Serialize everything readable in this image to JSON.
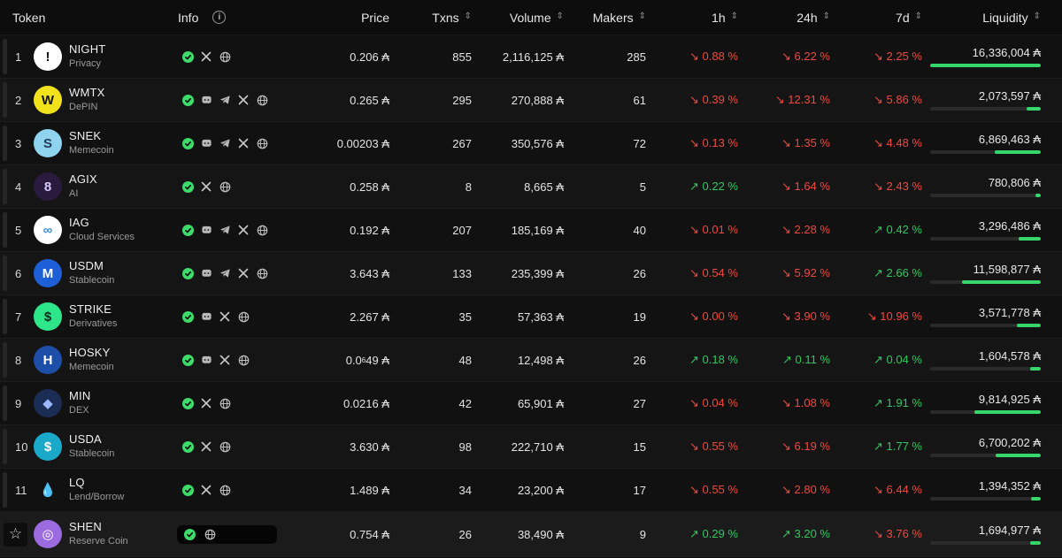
{
  "header": {
    "token": "Token",
    "info": "Info",
    "price": "Price",
    "txns": "Txns",
    "volume": "Volume",
    "makers": "Makers",
    "h1": "1h",
    "h24": "24h",
    "d7": "7d",
    "liquidity": "Liquidity"
  },
  "currency": "₳",
  "rows": [
    {
      "rank": "1",
      "symbol": "NIGHT",
      "category": "Privacy",
      "price": "0.206 ₳",
      "txns": "855",
      "volume": "2,116,125 ₳",
      "makers": "285",
      "h1": "↘ 0.88 %",
      "h1_dir": "down",
      "h24": "↘ 6.22 %",
      "h24_dir": "down",
      "d7": "↘ 2.25 %",
      "d7_dir": "down",
      "liquidity": "16,336,004 ₳",
      "liq_fill": 1.0,
      "icons": [
        "check",
        "x",
        "globe"
      ],
      "logo": {
        "bg": "#ffffff",
        "fg": "#111111",
        "glyph": "!"
      }
    },
    {
      "rank": "2",
      "symbol": "WMTX",
      "category": "DePIN",
      "price": "0.265 ₳",
      "txns": "295",
      "volume": "270,888 ₳",
      "makers": "61",
      "h1": "↘ 0.39 %",
      "h1_dir": "down",
      "h24": "↘ 12.31 %",
      "h24_dir": "down",
      "d7": "↘ 5.86 %",
      "d7_dir": "down",
      "liquidity": "2,073,597 ₳",
      "liq_fill": 0.13,
      "icons": [
        "check",
        "discord",
        "telegram",
        "x",
        "globe"
      ],
      "logo": {
        "bg": "#f2e21b",
        "fg": "#111111",
        "glyph": "W"
      }
    },
    {
      "rank": "3",
      "symbol": "SNEK",
      "category": "Memecoin",
      "price": "0.00203 ₳",
      "txns": "267",
      "volume": "350,576 ₳",
      "makers": "72",
      "h1": "↘ 0.13 %",
      "h1_dir": "down",
      "h24": "↘ 1.35 %",
      "h24_dir": "down",
      "d7": "↘ 4.48 %",
      "d7_dir": "down",
      "liquidity": "6,869,463 ₳",
      "liq_fill": 0.42,
      "icons": [
        "check",
        "discord",
        "telegram",
        "x",
        "globe"
      ],
      "logo": {
        "bg": "#8fd3ee",
        "fg": "#1e3b5a",
        "glyph": "S"
      }
    },
    {
      "rank": "4",
      "symbol": "AGIX",
      "category": "AI",
      "price": "0.258 ₳",
      "txns": "8",
      "volume": "8,665 ₳",
      "makers": "5",
      "h1": "↗ 0.22 %",
      "h1_dir": "up",
      "h24": "↘ 1.64 %",
      "h24_dir": "down",
      "d7": "↘ 2.43 %",
      "d7_dir": "down",
      "liquidity": "780,806 ₳",
      "liq_fill": 0.05,
      "icons": [
        "check",
        "x",
        "globe"
      ],
      "logo": {
        "bg": "#2a1a3e",
        "fg": "#d9c8ff",
        "glyph": "8"
      }
    },
    {
      "rank": "5",
      "symbol": "IAG",
      "category": "Cloud Services",
      "price": "0.192 ₳",
      "txns": "207",
      "volume": "185,169 ₳",
      "makers": "40",
      "h1": "↘ 0.01 %",
      "h1_dir": "down",
      "h24": "↘ 2.28 %",
      "h24_dir": "down",
      "d7": "↗ 0.42 %",
      "d7_dir": "up",
      "liquidity": "3,296,486 ₳",
      "liq_fill": 0.2,
      "icons": [
        "check",
        "discord",
        "telegram",
        "x",
        "globe"
      ],
      "logo": {
        "bg": "#ffffff",
        "fg": "#3a8ee0",
        "glyph": "∞"
      }
    },
    {
      "rank": "6",
      "symbol": "USDM",
      "category": "Stablecoin",
      "price": "3.643 ₳",
      "txns": "133",
      "volume": "235,399 ₳",
      "makers": "26",
      "h1": "↘ 0.54 %",
      "h1_dir": "down",
      "h24": "↘ 5.92 %",
      "h24_dir": "down",
      "d7": "↗ 2.66 %",
      "d7_dir": "up",
      "liquidity": "11,598,877 ₳",
      "liq_fill": 0.71,
      "icons": [
        "check",
        "discord",
        "telegram",
        "x",
        "globe"
      ],
      "logo": {
        "bg": "#1c5fd6",
        "fg": "#ffffff",
        "glyph": "M"
      }
    },
    {
      "rank": "7",
      "symbol": "STRIKE",
      "category": "Derivatives",
      "price": "2.267 ₳",
      "txns": "35",
      "volume": "57,363 ₳",
      "makers": "19",
      "h1": "↘ 0.00 %",
      "h1_dir": "down",
      "h24": "↘ 3.90 %",
      "h24_dir": "down",
      "d7": "↘ 10.96 %",
      "d7_dir": "down",
      "liquidity": "3,571,778 ₳",
      "liq_fill": 0.22,
      "icons": [
        "check",
        "discord",
        "x",
        "globe"
      ],
      "logo": {
        "bg": "#2ee68a",
        "fg": "#0b2a1a",
        "glyph": "$"
      }
    },
    {
      "rank": "8",
      "symbol": "HOSKY",
      "category": "Memecoin",
      "price_main": "0.0",
      "price_sub": "6",
      "price_tail": "49 ₳",
      "txns": "48",
      "volume": "12,498 ₳",
      "makers": "26",
      "h1": "↗ 0.18 %",
      "h1_dir": "up",
      "h24": "↗ 0.11 %",
      "h24_dir": "up",
      "d7": "↗ 0.04 %",
      "d7_dir": "up",
      "liquidity": "1,604,578 ₳",
      "liq_fill": 0.1,
      "icons": [
        "check",
        "discord",
        "x",
        "globe"
      ],
      "logo": {
        "bg": "#1e4fa8",
        "fg": "#ffffff",
        "glyph": "H"
      }
    },
    {
      "rank": "9",
      "symbol": "MIN",
      "category": "DEX",
      "price": "0.0216 ₳",
      "txns": "42",
      "volume": "65,901 ₳",
      "makers": "27",
      "h1": "↘ 0.04 %",
      "h1_dir": "down",
      "h24": "↘ 1.08 %",
      "h24_dir": "down",
      "d7": "↗ 1.91 %",
      "d7_dir": "up",
      "liquidity": "9,814,925 ₳",
      "liq_fill": 0.6,
      "icons": [
        "check",
        "x",
        "globe"
      ],
      "logo": {
        "bg": "#1b2c55",
        "fg": "#9bb7ff",
        "glyph": "◆"
      }
    },
    {
      "rank": "10",
      "symbol": "USDA",
      "category": "Stablecoin",
      "price": "3.630 ₳",
      "txns": "98",
      "volume": "222,710 ₳",
      "makers": "15",
      "h1": "↘ 0.55 %",
      "h1_dir": "down",
      "h24": "↘ 6.19 %",
      "h24_dir": "down",
      "d7": "↗ 1.77 %",
      "d7_dir": "up",
      "liquidity": "6,700,202 ₳",
      "liq_fill": 0.41,
      "icons": [
        "check",
        "x",
        "globe"
      ],
      "logo": {
        "bg": "#1aa9c9",
        "fg": "#ffffff",
        "glyph": "$"
      }
    },
    {
      "rank": "11",
      "symbol": "LQ",
      "category": "Lend/Borrow",
      "price": "1.489 ₳",
      "txns": "34",
      "volume": "23,200 ₳",
      "makers": "17",
      "h1": "↘ 0.55 %",
      "h1_dir": "down",
      "h24": "↘ 2.80 %",
      "h24_dir": "down",
      "d7": "↘ 6.44 %",
      "d7_dir": "down",
      "liquidity": "1,394,352 ₳",
      "liq_fill": 0.09,
      "icons": [
        "check",
        "x",
        "globe"
      ],
      "logo": {
        "bg": "#111111",
        "fg": "#3ba7e8",
        "glyph": "💧"
      }
    },
    {
      "rank": "",
      "symbol": "SHEN",
      "category": "Reserve Coin",
      "price": "0.754 ₳",
      "txns": "26",
      "volume": "38,490 ₳",
      "makers": "9",
      "h1": "↗ 0.29 %",
      "h1_dir": "up",
      "h24": "↗ 3.20 %",
      "h24_dir": "up",
      "d7": "↘ 3.76 %",
      "d7_dir": "down",
      "liquidity": "1,694,977 ₳",
      "liq_fill": 0.1,
      "icons": [
        "check",
        "globe"
      ],
      "logo": {
        "bg": "#9b6be0",
        "fg": "#ffffff",
        "glyph": "◎"
      },
      "starred": true
    }
  ],
  "colors": {
    "up": "#2ec95e",
    "down": "#f0483e",
    "liq": "#36d66a"
  }
}
